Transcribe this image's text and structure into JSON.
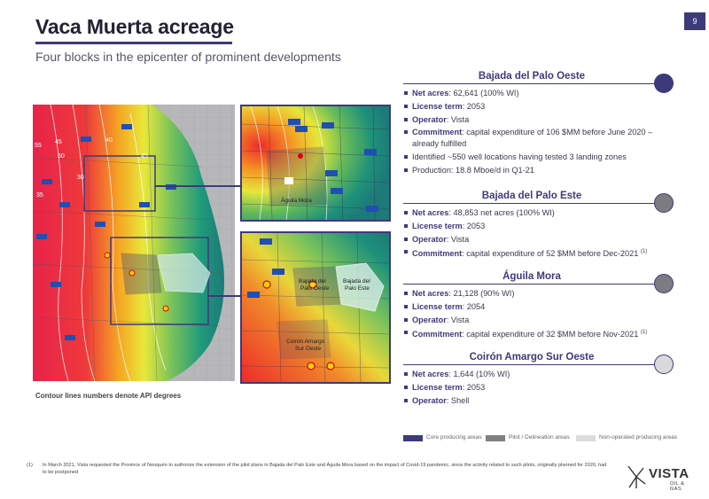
{
  "page_number": "9",
  "title": "Vaca Muerta acreage",
  "subtitle": "Four blocks in the epicenter of prominent developments",
  "map_caption": "Contour lines numbers denote API degrees",
  "map": {
    "contour_labels": [
      "45",
      "40",
      "50",
      "55",
      "35",
      "30",
      "45"
    ],
    "inset_top_label": "Águila Mora",
    "inset_bottom_labels": [
      "Bajada del Palo Oeste",
      "Bajada del Palo Este",
      "Coirón Amargo Sur Oeste"
    ],
    "ypf_badge": "YPF"
  },
  "blocks": [
    {
      "title": "Bajada del Palo Oeste",
      "circle_color": "#3d3a7a",
      "bullets": [
        {
          "key": "Net acres",
          "text": ": 62,641 (100% WI)"
        },
        {
          "key": "License term",
          "text": ": 2053"
        },
        {
          "key": "Operator",
          "text": ": Vista"
        },
        {
          "key": "Commitment",
          "text": ": capital expenditure of 106 $MM before June 2020 – already fulfilled"
        },
        {
          "key": "",
          "text": "Identified ~550 well locations having tested 3 landing zones"
        },
        {
          "key": "",
          "text": "Production: 18.8 Mboe/d in Q1-21"
        }
      ]
    },
    {
      "title": "Bajada del Palo Este",
      "circle_color": "#7c7c80",
      "bullets": [
        {
          "key": "Net acres",
          "text": ": 48,853 net acres (100% WI)"
        },
        {
          "key": "License term",
          "text": ": 2053"
        },
        {
          "key": "Operator",
          "text": ": Vista"
        },
        {
          "key": "Commitment",
          "text": ": capital expenditure of 52 $MM before Dec-2021 ",
          "sup": "(1)"
        }
      ]
    },
    {
      "title": "Águila Mora",
      "circle_color": "#7c7c80",
      "bullets": [
        {
          "key": "Net acres",
          "text": ": 21,128 (90% WI)"
        },
        {
          "key": "License term",
          "text": ": 2054"
        },
        {
          "key": "Operator",
          "text": ": Vista"
        },
        {
          "key": "Commitment",
          "text": ": capital expenditure of 32 $MM before Nov-2021 ",
          "sup": "(1)"
        }
      ]
    },
    {
      "title": "Coirón Amargo Sur Oeste",
      "circle_color": "#d9d9db",
      "bullets": [
        {
          "key": "Net acres",
          "text": ": 1,644 (10% WI)"
        },
        {
          "key": "License term",
          "text": ": 2053"
        },
        {
          "key": "Operator",
          "text": ": Shell"
        }
      ]
    }
  ],
  "legend": [
    {
      "label": "Core producing areas",
      "color": "#3d3a7a"
    },
    {
      "label": "Pilot / Delineation areas",
      "color": "#808084"
    },
    {
      "label": "Non-operated producing areas",
      "color": "#dcdcde"
    }
  ],
  "footnote": {
    "mark": "(1)",
    "text": "In March 2021, Vista requested the Province of Neuquén to authorize the extension of the pilot plans in Bajada del Palo Este and Águila Mora based on the impact of Covid-19 pandemic, since the activity related to such pilots, originally planned for 2020, had to be postponed"
  },
  "logo": {
    "word": "VISTA",
    "sub": "OIL & GAS"
  }
}
